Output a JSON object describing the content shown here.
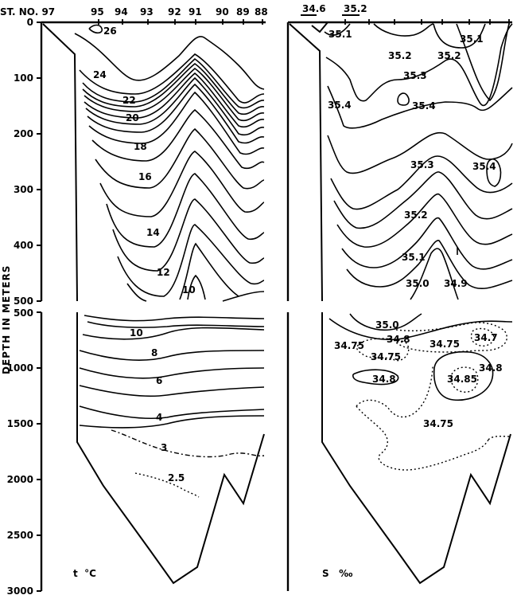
{
  "left_panel": {
    "station_label": "ST. NO. 97",
    "stations": [
      "95",
      "94",
      "93",
      "92",
      "91",
      "90",
      "89",
      "88"
    ],
    "variable_label": "t  °C",
    "isotherm_labels_upper": [
      "26",
      "24",
      "22",
      "20",
      "18",
      "16",
      "14",
      "12",
      "10"
    ],
    "isotherm_labels_lower": [
      "10",
      "8",
      "6",
      "4",
      "3",
      "2.5"
    ]
  },
  "right_panel": {
    "top_labels": [
      "34.6",
      "35.2"
    ],
    "variable_label": "S   ‰",
    "isohaline_labels_upper": [
      "35.1",
      "35.1",
      "35.2",
      "35.2",
      "35.3",
      "35.4",
      "35.4",
      "35.3",
      "35.4",
      "35.2",
      "35.1",
      "35.0",
      "34.9"
    ],
    "isohaline_labels_lower": [
      "35.0",
      "34.8",
      "34.75",
      "34.75",
      "34.75",
      "34.7",
      "34.8",
      "34.85",
      "34.8",
      "34.75"
    ]
  },
  "y_axis": {
    "label": "DEPTH IN METERS",
    "upper_ticks": [
      "0",
      "100",
      "200",
      "300",
      "400",
      "500"
    ],
    "lower_ticks": [
      "500",
      "1000",
      "1500",
      "2000",
      "2500",
      "3000"
    ]
  }
}
